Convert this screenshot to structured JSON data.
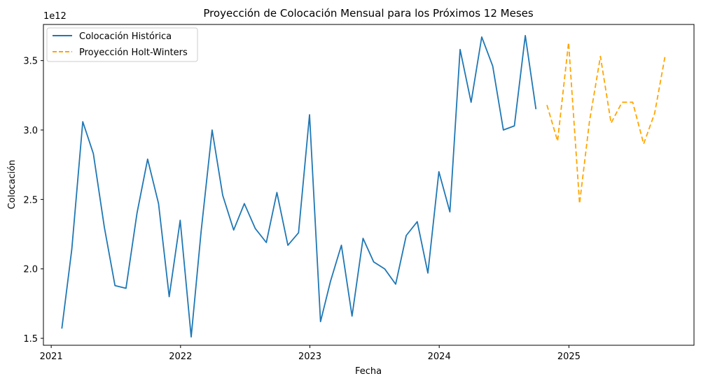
{
  "chart_data": {
    "type": "line",
    "title": "Proyección de Colocación Mensual para los Próximos 12 Meses",
    "xlabel": "Fecha",
    "ylabel": "Colocación",
    "y_offset_text": "1e12",
    "y_scale": 1000000000000,
    "xlim": [
      "2020-12-10",
      "2025-12-20"
    ],
    "ylim": [
      1.45,
      3.76
    ],
    "x_ticks": [
      {
        "date": "2021-01-01",
        "label": "2021"
      },
      {
        "date": "2022-01-01",
        "label": "2022"
      },
      {
        "date": "2023-01-01",
        "label": "2023"
      },
      {
        "date": "2024-01-01",
        "label": "2024"
      },
      {
        "date": "2025-01-01",
        "label": "2025"
      }
    ],
    "y_ticks": [
      {
        "value": 1.5,
        "label": "1.5"
      },
      {
        "value": 2.0,
        "label": "2.0"
      },
      {
        "value": 2.5,
        "label": "2.5"
      },
      {
        "value": 3.0,
        "label": "3.0"
      },
      {
        "value": 3.5,
        "label": "3.5"
      }
    ],
    "grid": false,
    "legend_position": "top-left",
    "series": [
      {
        "name": "Colocación Histórica",
        "color": "#1f77b4",
        "style": "solid",
        "x": [
          "2021-01-31",
          "2021-02-28",
          "2021-03-31",
          "2021-04-30",
          "2021-05-31",
          "2021-06-30",
          "2021-07-31",
          "2021-08-31",
          "2021-09-30",
          "2021-10-31",
          "2021-11-30",
          "2021-12-31",
          "2022-01-31",
          "2022-02-28",
          "2022-03-31",
          "2022-04-30",
          "2022-05-31",
          "2022-06-30",
          "2022-07-31",
          "2022-08-31",
          "2022-09-30",
          "2022-10-31",
          "2022-11-30",
          "2022-12-31",
          "2023-01-31",
          "2023-02-28",
          "2023-03-31",
          "2023-04-30",
          "2023-05-31",
          "2023-06-30",
          "2023-07-31",
          "2023-08-31",
          "2023-09-30",
          "2023-10-31",
          "2023-11-30",
          "2023-12-31",
          "2024-01-31",
          "2024-02-29",
          "2024-03-31",
          "2024-04-30",
          "2024-05-31",
          "2024-06-30",
          "2024-07-31",
          "2024-08-31",
          "2024-09-30"
        ],
        "values": [
          1.57,
          2.14,
          3.06,
          2.83,
          2.3,
          1.88,
          1.86,
          2.4,
          2.79,
          2.47,
          1.8,
          2.35,
          1.51,
          2.27,
          3.0,
          2.53,
          2.28,
          2.47,
          2.29,
          2.19,
          2.55,
          2.17,
          2.26,
          3.11,
          1.62,
          1.91,
          2.17,
          1.66,
          2.22,
          2.05,
          2.0,
          1.89,
          2.24,
          2.34,
          1.97,
          2.7,
          2.41,
          3.58,
          3.2,
          3.67,
          3.46,
          3.0,
          3.03,
          3.68,
          3.15
        ]
      },
      {
        "name": "Proyección Holt-Winters",
        "color": "#ffa500",
        "style": "dashed",
        "x": [
          "2024-10-31",
          "2024-11-30",
          "2024-12-31",
          "2025-01-31",
          "2025-02-28",
          "2025-03-31",
          "2025-04-30",
          "2025-05-31",
          "2025-06-30",
          "2025-07-31",
          "2025-08-31",
          "2025-09-30"
        ],
        "values": [
          3.18,
          2.92,
          3.63,
          2.47,
          3.06,
          3.53,
          3.05,
          3.2,
          3.2,
          2.9,
          3.12,
          3.54
        ]
      }
    ]
  }
}
